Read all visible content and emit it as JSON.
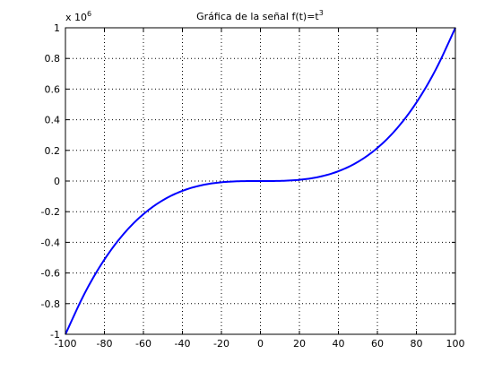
{
  "chart_data": {
    "type": "line",
    "title": "Gráfica de la señal f(t)=t",
    "title_superscript": "3",
    "xlabel": "",
    "ylabel": "",
    "y_multiplier_base": "x 10",
    "y_multiplier_exponent": "6",
    "xlim": [
      -100,
      100
    ],
    "ylim": [
      -1,
      1
    ],
    "grid": true,
    "x_ticks": [
      -100,
      -80,
      -60,
      -40,
      -20,
      0,
      20,
      40,
      60,
      80,
      100
    ],
    "x_tick_labels": [
      "-100",
      "-80",
      "-60",
      "-40",
      "-20",
      "0",
      "20",
      "40",
      "60",
      "80",
      "100"
    ],
    "y_ticks": [
      -1,
      -0.8,
      -0.6,
      -0.4,
      -0.2,
      0,
      0.2,
      0.4,
      0.6,
      0.8,
      1
    ],
    "y_tick_labels": [
      "-1",
      "-0.8",
      "-0.6",
      "-0.4",
      "-0.2",
      "0",
      "0.2",
      "0.4",
      "0.6",
      "0.8",
      "1"
    ],
    "series": [
      {
        "color": "#0000ff",
        "x": [
          -100,
          -90,
          -80,
          -70,
          -60,
          -50,
          -40,
          -30,
          -20,
          -10,
          0,
          10,
          20,
          30,
          40,
          50,
          60,
          70,
          80,
          90,
          100
        ],
        "y": [
          -1,
          -0.729,
          -0.512,
          -0.343,
          -0.216,
          -0.125,
          -0.064,
          -0.027,
          -0.008,
          -0.001,
          0,
          0.001,
          0.008,
          0.027,
          0.064,
          0.125,
          0.216,
          0.343,
          0.512,
          0.729,
          1
        ]
      }
    ]
  }
}
